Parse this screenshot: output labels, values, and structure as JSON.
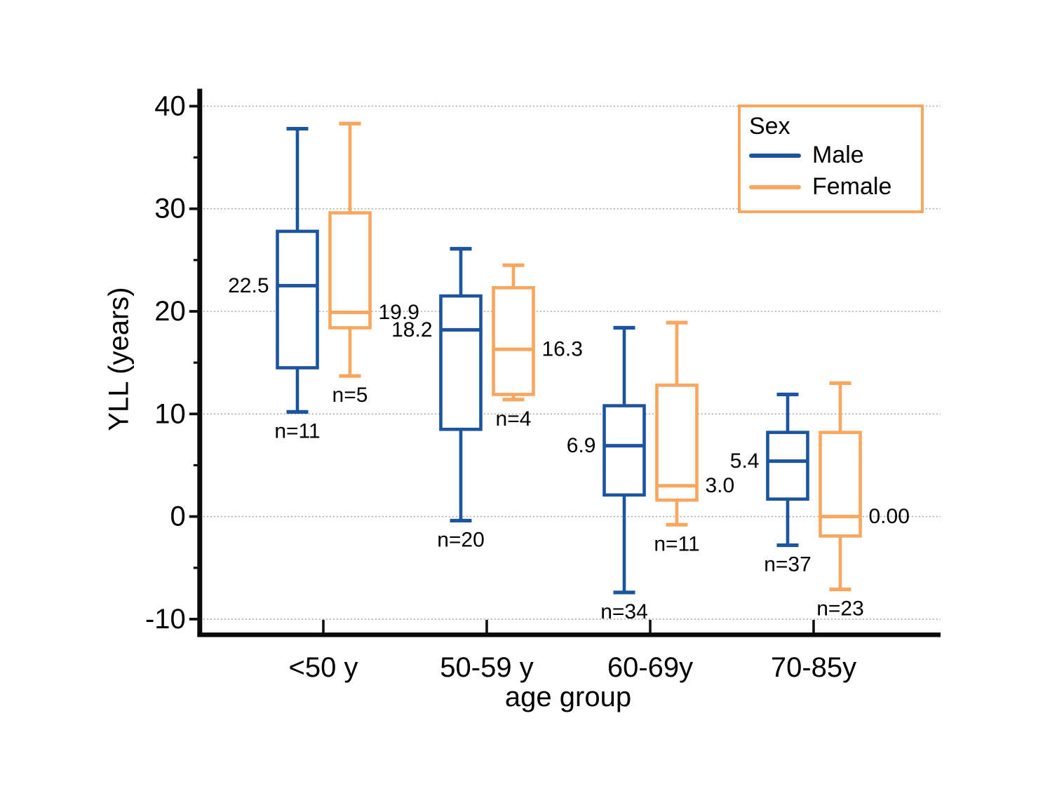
{
  "figure": {
    "background": "#ffffff"
  },
  "chart_data": {
    "type": "boxplot",
    "title": "",
    "xlabel": "age group",
    "ylabel": "YLL (years)",
    "categories": [
      "<50 y",
      "50-59 y",
      "60-69y",
      "70-85y"
    ],
    "y_axis": {
      "ticks_major": [
        40,
        30,
        20,
        10,
        0,
        -10
      ],
      "ticks_minor": [
        35,
        25,
        15,
        5,
        -5
      ],
      "range_shown": [
        -11.5,
        41.6
      ],
      "grid": "dotted-horizontal-at-major-ticks",
      "grid_color": "#b0b0b0"
    },
    "legend": {
      "title": "Sex",
      "position": "top-right",
      "border_color": "#f9a75f",
      "items": [
        {
          "label": "Male",
          "color": "#1b55a0"
        },
        {
          "label": "Female",
          "color": "#f9a75f"
        }
      ]
    },
    "series": [
      {
        "name": "Male",
        "color": "#1b55a0",
        "label_side": "left",
        "boxes": [
          {
            "category": "<50 y",
            "whisker_low": 10.2,
            "q1": 14.5,
            "median": 22.5,
            "q3": 27.8,
            "whisker_high": 37.8,
            "n": 11,
            "median_label": "22.5",
            "n_label": "n=11"
          },
          {
            "category": "50-59 y",
            "whisker_low": -0.4,
            "q1": 8.5,
            "median": 18.2,
            "q3": 21.5,
            "whisker_high": 26.1,
            "n": 20,
            "median_label": "18.2",
            "n_label": "n=20"
          },
          {
            "category": "60-69y",
            "whisker_low": -7.4,
            "q1": 2.1,
            "median": 6.9,
            "q3": 10.8,
            "whisker_high": 18.4,
            "n": 34,
            "median_label": "6.9",
            "n_label": "n=34"
          },
          {
            "category": "70-85y",
            "whisker_low": -2.8,
            "q1": 1.7,
            "median": 5.4,
            "q3": 8.2,
            "whisker_high": 11.9,
            "n": 37,
            "median_label": "5.4",
            "n_label": "n=37"
          }
        ]
      },
      {
        "name": "Female",
        "color": "#f9a75f",
        "label_side": "right",
        "boxes": [
          {
            "category": "<50 y",
            "whisker_low": 13.7,
            "q1": 18.4,
            "median": 19.9,
            "q3": 29.6,
            "whisker_high": 38.3,
            "n": 5,
            "median_label": "19.9",
            "n_label": "n=5"
          },
          {
            "category": "50-59 y",
            "whisker_low": 11.4,
            "q1": 11.9,
            "median": 16.3,
            "q3": 22.3,
            "whisker_high": 24.5,
            "n": 4,
            "median_label": "16.3",
            "n_label": "n=4"
          },
          {
            "category": "60-69y",
            "whisker_low": -0.8,
            "q1": 1.6,
            "median": 3.0,
            "q3": 12.8,
            "whisker_high": 18.9,
            "n": 11,
            "median_label": "3.0",
            "n_label": "n=11"
          },
          {
            "category": "70-85y",
            "whisker_low": -7.1,
            "q1": -1.9,
            "median": 0.0,
            "q3": 8.2,
            "whisker_high": 13.0,
            "n": 23,
            "median_label": "0.00",
            "n_label": "n=23"
          }
        ]
      }
    ]
  }
}
